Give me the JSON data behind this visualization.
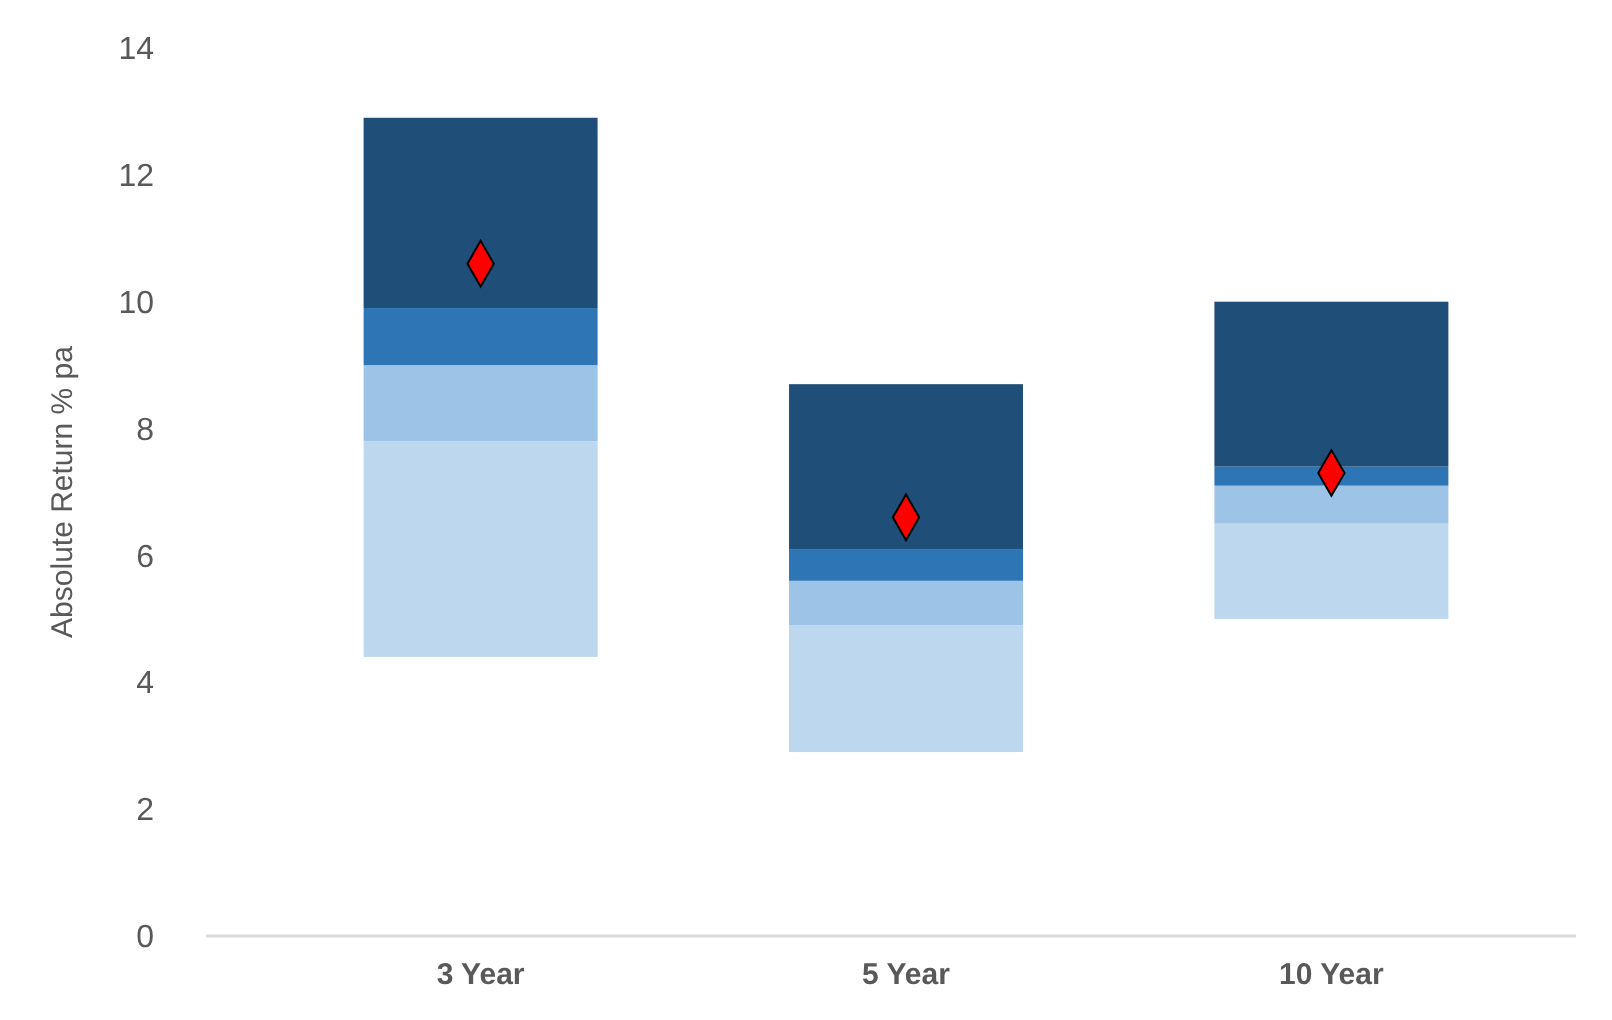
{
  "chart_data": {
    "type": "bar",
    "ylabel": "Absolute Return % pa",
    "categories": [
      "3 Year",
      "5 Year",
      "10 Year"
    ],
    "series": [
      {
        "color": "#bdd7ee",
        "base": [
          4.4,
          2.9,
          5.0
        ],
        "values": [
          3.4,
          2.0,
          1.5
        ]
      },
      {
        "color": "#9dc3e6",
        "base": [
          7.8,
          4.9,
          6.5
        ],
        "values": [
          1.2,
          0.7,
          0.6
        ]
      },
      {
        "color": "#2e75b6",
        "base": [
          9.0,
          5.6,
          7.1
        ],
        "values": [
          0.9,
          0.5,
          0.3
        ]
      },
      {
        "color": "#1f4e79",
        "base": [
          9.9,
          6.1,
          7.4
        ],
        "values": [
          3.0,
          2.6,
          2.6
        ]
      },
      {
        "type": "scatter",
        "color": "#ff0000",
        "marker": "diamond",
        "x": [
          "3 Year",
          "5 Year",
          "10 Year"
        ],
        "values": [
          10.6,
          6.6,
          7.3
        ]
      }
    ],
    "ylim": [
      0,
      14
    ],
    "yticks": [
      0,
      2,
      4,
      6,
      8,
      10,
      12,
      14
    ],
    "grid": false
  }
}
